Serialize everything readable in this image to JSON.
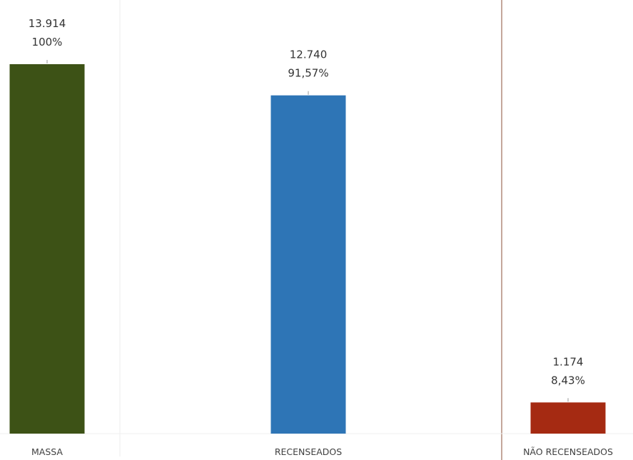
{
  "chart_data": {
    "type": "bar",
    "categories": [
      "MASSA",
      "RECENSEADOS",
      "NÃO RECENSEADOS"
    ],
    "values": [
      13914,
      12740,
      1174
    ],
    "value_labels": [
      "13.914",
      "12.740",
      "1.174"
    ],
    "percent_labels": [
      "100%",
      "91,57%",
      "8,43%"
    ],
    "colors": [
      "#3d5216",
      "#2e75b6",
      "#a52a12"
    ],
    "title": "",
    "xlabel": "",
    "ylabel": "",
    "ylim": [
      0,
      15000
    ],
    "grid": false,
    "legend": "none"
  }
}
